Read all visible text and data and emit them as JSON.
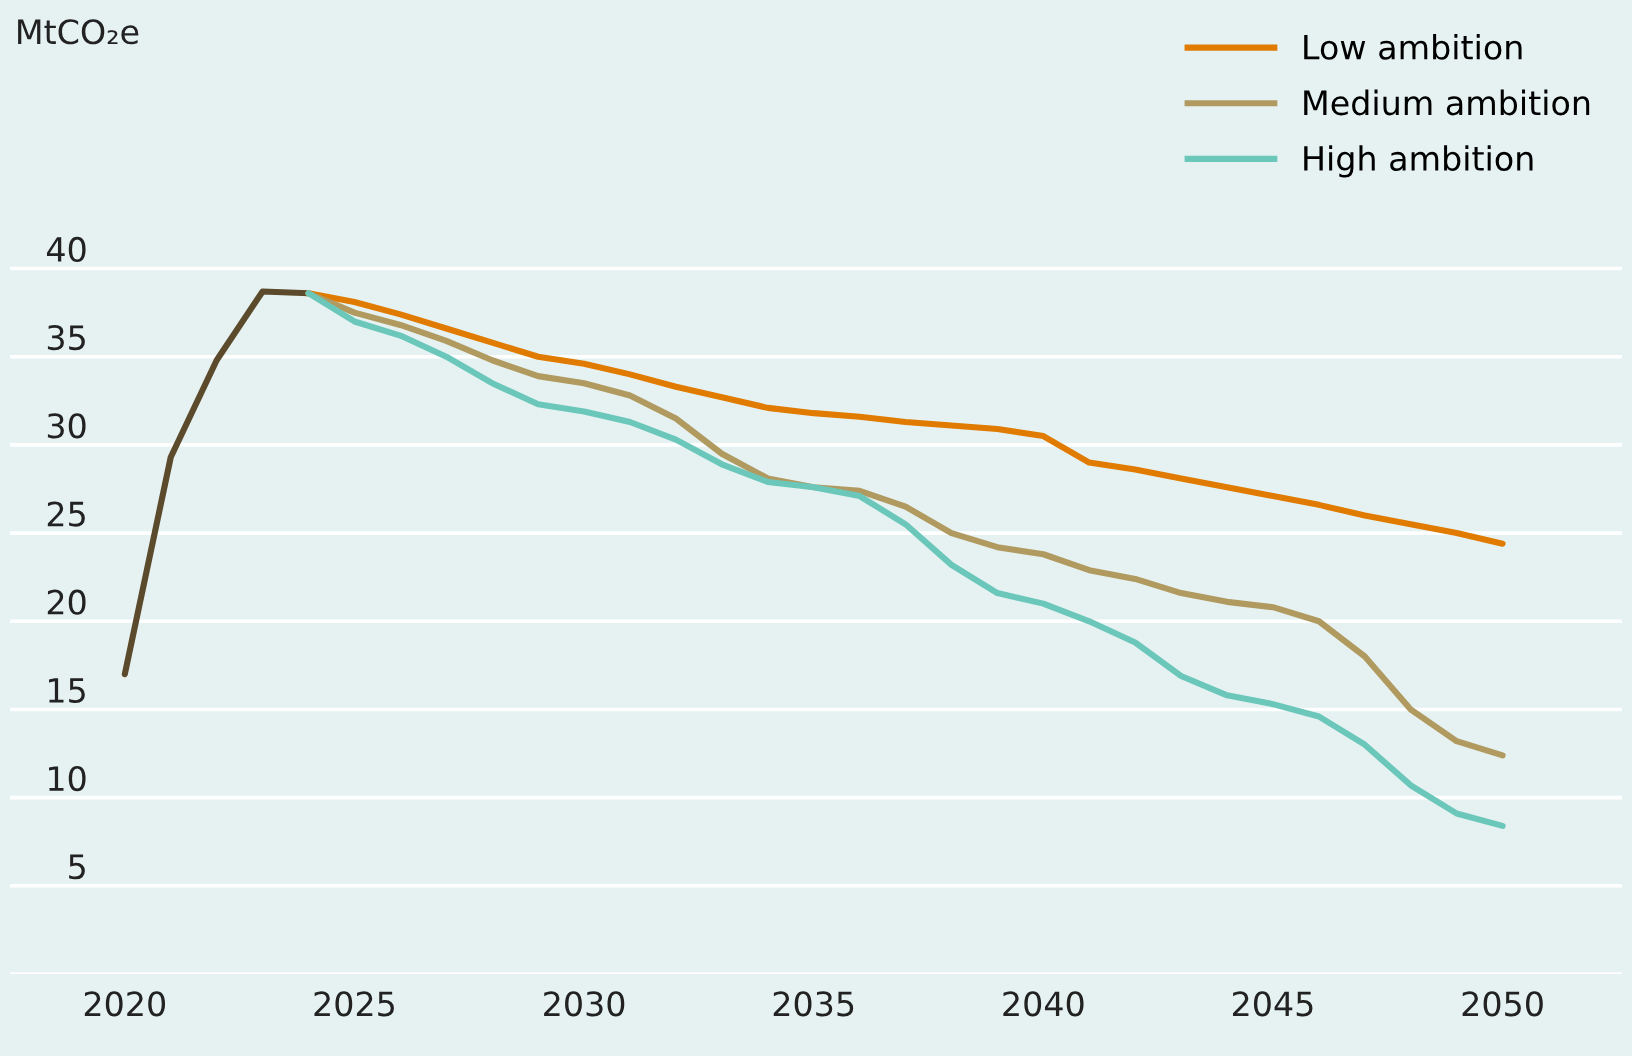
{
  "chart_data": {
    "type": "line",
    "ylabel": "MtCO₂e",
    "xlim": [
      2017.5,
      2052.6
    ],
    "xticks": [
      2020,
      2025,
      2030,
      2035,
      2040,
      2045,
      2050
    ],
    "ylim": [
      0,
      55
    ],
    "yticks": [
      {
        "value": 0,
        "label": null
      },
      5,
      10,
      15,
      20,
      25,
      30,
      35,
      40
    ],
    "grid": "y",
    "legend": "top right",
    "marker": "none",
    "line_style": "solid",
    "series": [
      {
        "color": "#5c4a2c",
        "x": [
          2020,
          2021,
          2022,
          2023,
          2024
        ],
        "values": [
          17.0,
          29.3,
          34.8,
          38.7,
          38.6
        ]
      },
      {
        "name": "Low ambition",
        "color": "#e07b00",
        "x": [
          2024,
          2025,
          2026,
          2027,
          2028,
          2029,
          2030,
          2031,
          2032,
          2033,
          2034,
          2035,
          2036,
          2037,
          2038,
          2039,
          2040,
          2041,
          2042,
          2043,
          2044,
          2045,
          2046,
          2047,
          2048,
          2049,
          2050
        ],
        "values": [
          38.6,
          38.1,
          37.4,
          36.6,
          35.8,
          35.0,
          34.6,
          34.0,
          33.3,
          32.7,
          32.1,
          31.8,
          31.6,
          31.3,
          31.1,
          30.9,
          30.5,
          29.0,
          28.6,
          28.1,
          27.6,
          27.1,
          26.6,
          26.0,
          25.5,
          25.0,
          24.4
        ]
      },
      {
        "name": "Medium ambition",
        "color": "#b09a60",
        "x": [
          2024,
          2025,
          2026,
          2027,
          2028,
          2029,
          2030,
          2031,
          2032,
          2033,
          2034,
          2035,
          2036,
          2037,
          2038,
          2039,
          2040,
          2041,
          2042,
          2043,
          2044,
          2045,
          2046,
          2047,
          2048,
          2049,
          2050
        ],
        "values": [
          38.6,
          37.5,
          36.8,
          35.9,
          34.8,
          33.9,
          33.5,
          32.8,
          31.5,
          29.5,
          28.1,
          27.6,
          27.4,
          26.5,
          25.0,
          24.2,
          23.8,
          22.9,
          22.4,
          21.6,
          21.1,
          20.8,
          20.0,
          18.0,
          15.0,
          13.2,
          12.4
        ]
      },
      {
        "name": "High ambition",
        "color": "#6cc7bb",
        "x": [
          2024,
          2025,
          2026,
          2027,
          2028,
          2029,
          2030,
          2031,
          2032,
          2033,
          2034,
          2035,
          2036,
          2037,
          2038,
          2039,
          2040,
          2041,
          2042,
          2043,
          2044,
          2045,
          2046,
          2047,
          2048,
          2049,
          2050
        ],
        "values": [
          38.6,
          37.0,
          36.2,
          35.0,
          33.5,
          32.3,
          31.9,
          31.3,
          30.3,
          28.9,
          27.9,
          27.6,
          27.1,
          25.5,
          23.2,
          21.6,
          21.0,
          20.0,
          18.8,
          16.9,
          15.8,
          15.3,
          14.6,
          13.0,
          10.7,
          9.1,
          8.4
        ]
      }
    ]
  }
}
